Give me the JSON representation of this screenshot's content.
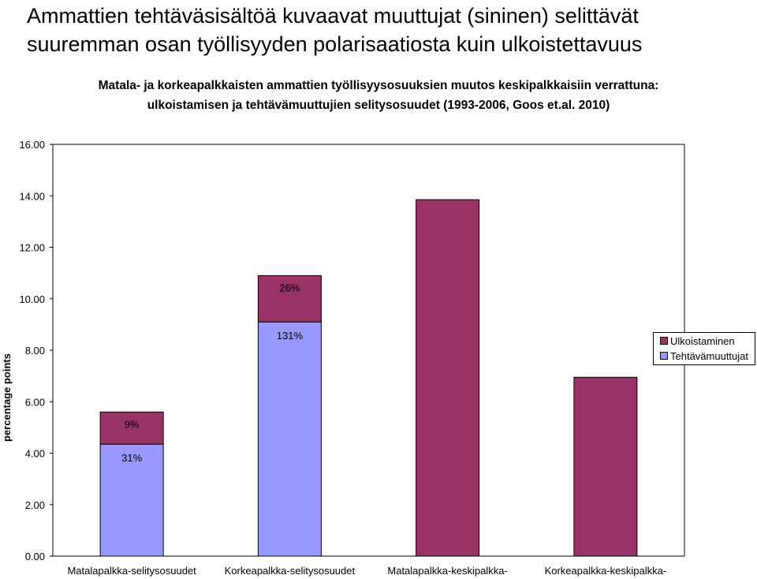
{
  "header": {
    "line1": "Ammattien tehtäväsisältöä kuvaavat muuttujat  (sininen) selittävät",
    "line2": "suuremman osan työllisyyden polarisaatiosta kuin ulkoistettavuus"
  },
  "chart_data": {
    "type": "bar",
    "stacked": true,
    "subtitle_line1": "Matala- ja korkeapalkkaisten ammattien työllisyysosuuksien muutos keskipalkkaisiin verrattuna:",
    "subtitle_line2": "ulkoistamisen ja tehtävämuuttujien selitysosuudet (1993-2006,  Goos et.al.  2010)",
    "ylabel": "percentage points",
    "xlabel": "",
    "ylim": [
      0,
      16
    ],
    "yticks": [
      "0.00",
      "2.00",
      "4.00",
      "6.00",
      "8.00",
      "10.00",
      "12.00",
      "14.00",
      "16.00"
    ],
    "grid": false,
    "legend_position": "right",
    "categories": [
      "Matalapalkka-selitysosuudet",
      "Korkeapalkka-selitysosuudet",
      "Matalapalkka-keskipalkka-",
      "Korkeapalkka-keskipalkka-"
    ],
    "series": [
      {
        "name": "Tehtävämuuttujat",
        "color": "#9999ff",
        "values": [
          4.35,
          9.1,
          0,
          0
        ],
        "labels": [
          "31%",
          "131%",
          "",
          ""
        ]
      },
      {
        "name": "Ulkoistaminen",
        "color": "#993366",
        "values": [
          1.25,
          1.8,
          13.85,
          6.95
        ],
        "labels": [
          "9%",
          "26%",
          "",
          ""
        ]
      }
    ]
  }
}
